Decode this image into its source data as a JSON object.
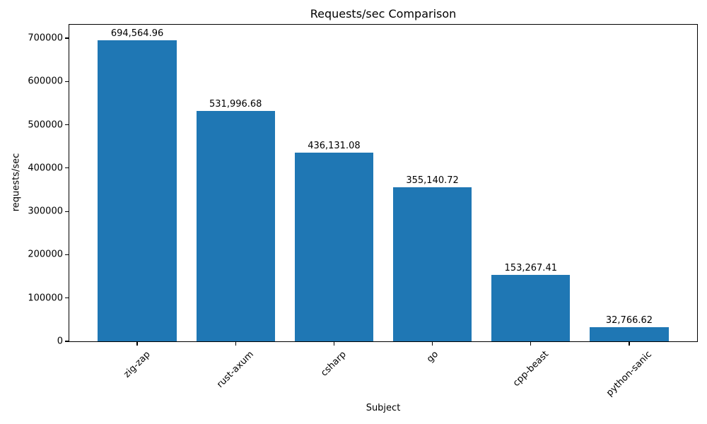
{
  "chart_data": {
    "type": "bar",
    "title": "Requests/sec Comparison",
    "xlabel": "Subject",
    "ylabel": "requests/sec",
    "categories": [
      "zig-zap",
      "rust-axum",
      "csharp",
      "go",
      "cpp-beast",
      "python-sanic"
    ],
    "values": [
      694564.96,
      531996.68,
      436131.08,
      355140.72,
      153267.41,
      32766.62
    ],
    "value_labels": [
      "694,564.96",
      "531,996.68",
      "436,131.08",
      "355,140.72",
      "153,267.41",
      "32,766.62"
    ],
    "ylim": [
      0,
      700000
    ],
    "yticks": [
      0,
      100000,
      200000,
      300000,
      400000,
      500000,
      600000,
      700000
    ],
    "ytick_labels": [
      "0",
      "100000",
      "200000",
      "300000",
      "400000",
      "500000",
      "600000",
      "700000"
    ],
    "bar_color": "#1f77b4",
    "grid": false,
    "legend": "none"
  }
}
